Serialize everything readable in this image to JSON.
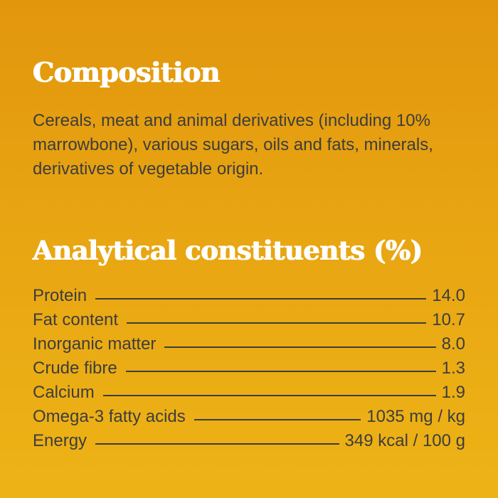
{
  "composition": {
    "title": "Composition",
    "text": "Cereals, meat and animal derivatives (including 10% marrowbone), various sugars, oils and fats, minerals, derivatives of vegetable origin."
  },
  "analytical": {
    "title": "Analytical constituents (%)",
    "rows": [
      {
        "label": "Protein",
        "value": "14.0"
      },
      {
        "label": "Fat content",
        "value": "10.7"
      },
      {
        "label": "Inorganic matter",
        "value": "8.0"
      },
      {
        "label": "Crude fibre",
        "value": "1.3"
      },
      {
        "label": "Calcium",
        "value": "1.9"
      },
      {
        "label": "Omega-3 fatty acids",
        "value": "1035 mg / kg"
      },
      {
        "label": "Energy",
        "value": "349 kcal / 100 g"
      }
    ]
  },
  "colors": {
    "background_top": "#e2960c",
    "background_bottom": "#edb316",
    "heading": "#ffffff",
    "text": "#3d3d3d"
  }
}
